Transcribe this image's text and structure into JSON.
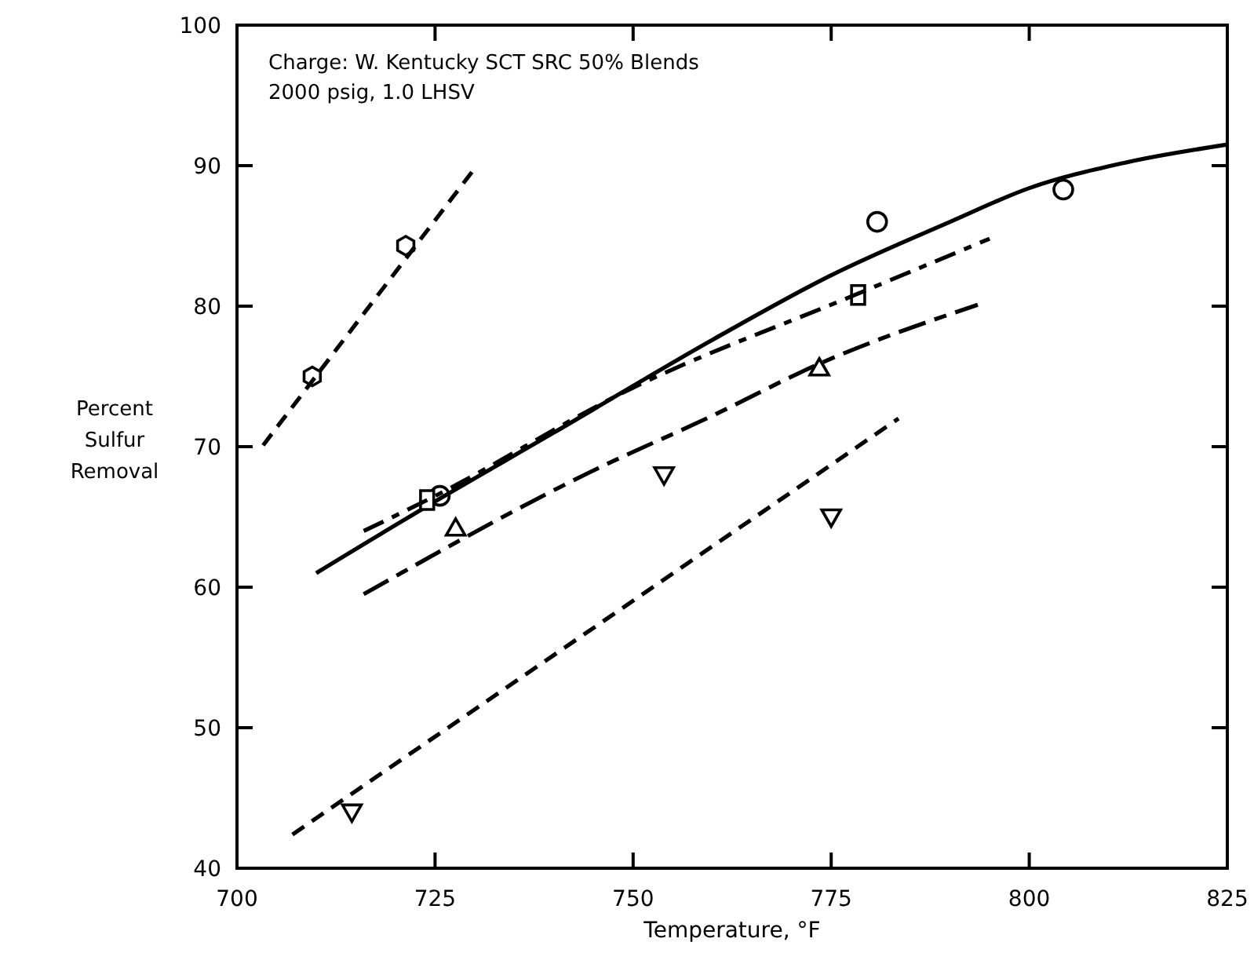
{
  "chart_data": {
    "type": "scatter",
    "xlabel": "Temperature, °F",
    "ylabel": "Percent Sulfur Removal",
    "annotations": [
      "Charge: W. Kentucky SCT SRC 50% Blends",
      "2000 psig, 1.0 LHSV"
    ],
    "xlim": [
      700,
      825
    ],
    "xticks": [
      700,
      725,
      750,
      775,
      800,
      825
    ],
    "ylim": [
      40,
      100
    ],
    "yticks": [
      40,
      50,
      60,
      70,
      80,
      90,
      100
    ],
    "grid": false,
    "series": [
      {
        "color": "#000000",
        "x": [
          709.5,
          721.3
        ],
        "values": [
          75,
          84.3
        ]
      },
      {
        "type": "line",
        "line_style": "dashed",
        "color": "#000000",
        "x": [
          703.3,
          730
        ],
        "values": [
          70.1,
          89.8
        ]
      },
      {
        "marker": "circle",
        "color": "#000000",
        "x": [
          725.6,
          780.8,
          804.3
        ],
        "values": [
          66.5,
          86,
          88.3
        ]
      },
      {
        "type": "line",
        "line_style": "solid",
        "color": "#000000",
        "x": [
          710,
          725.6,
          740,
          760,
          775,
          790,
          800,
          812,
          825
        ],
        "values": [
          61,
          66.3,
          71,
          77.6,
          82.2,
          86,
          88.4,
          90.2,
          91.5
        ]
      },
      {
        "marker": "square",
        "color": "#000000",
        "x": [
          724,
          778.4
        ],
        "values": [
          66.2,
          80.8
        ]
      },
      {
        "type": "line",
        "line_style": "dashed",
        "color": "#000000",
        "x": [
          716,
          724,
          750,
          778,
          795
        ],
        "values": [
          64,
          66.2,
          74.2,
          80.8,
          84.8
        ]
      },
      {
        "marker": "triangle",
        "color": "#000000",
        "x": [
          727.6,
          773.5
        ],
        "values": [
          64.2,
          75.6
        ]
      },
      {
        "type": "line",
        "line_style": "dashed",
        "color": "#000000",
        "x": [
          716,
          744.6,
          760,
          773.5,
          793.5
        ],
        "values": [
          59.5,
          68.2,
          72.2,
          75.9,
          80.1
        ]
      },
      {
        "marker": "triangle-down",
        "color": "#000000",
        "x": [
          714.5,
          753.9,
          775
        ],
        "values": [
          44,
          68,
          65
        ]
      },
      {
        "type": "line",
        "line_style": "dashed",
        "color": "#000000",
        "x": [
          707,
          783.5
        ],
        "values": [
          42.4,
          72
        ]
      }
    ]
  }
}
